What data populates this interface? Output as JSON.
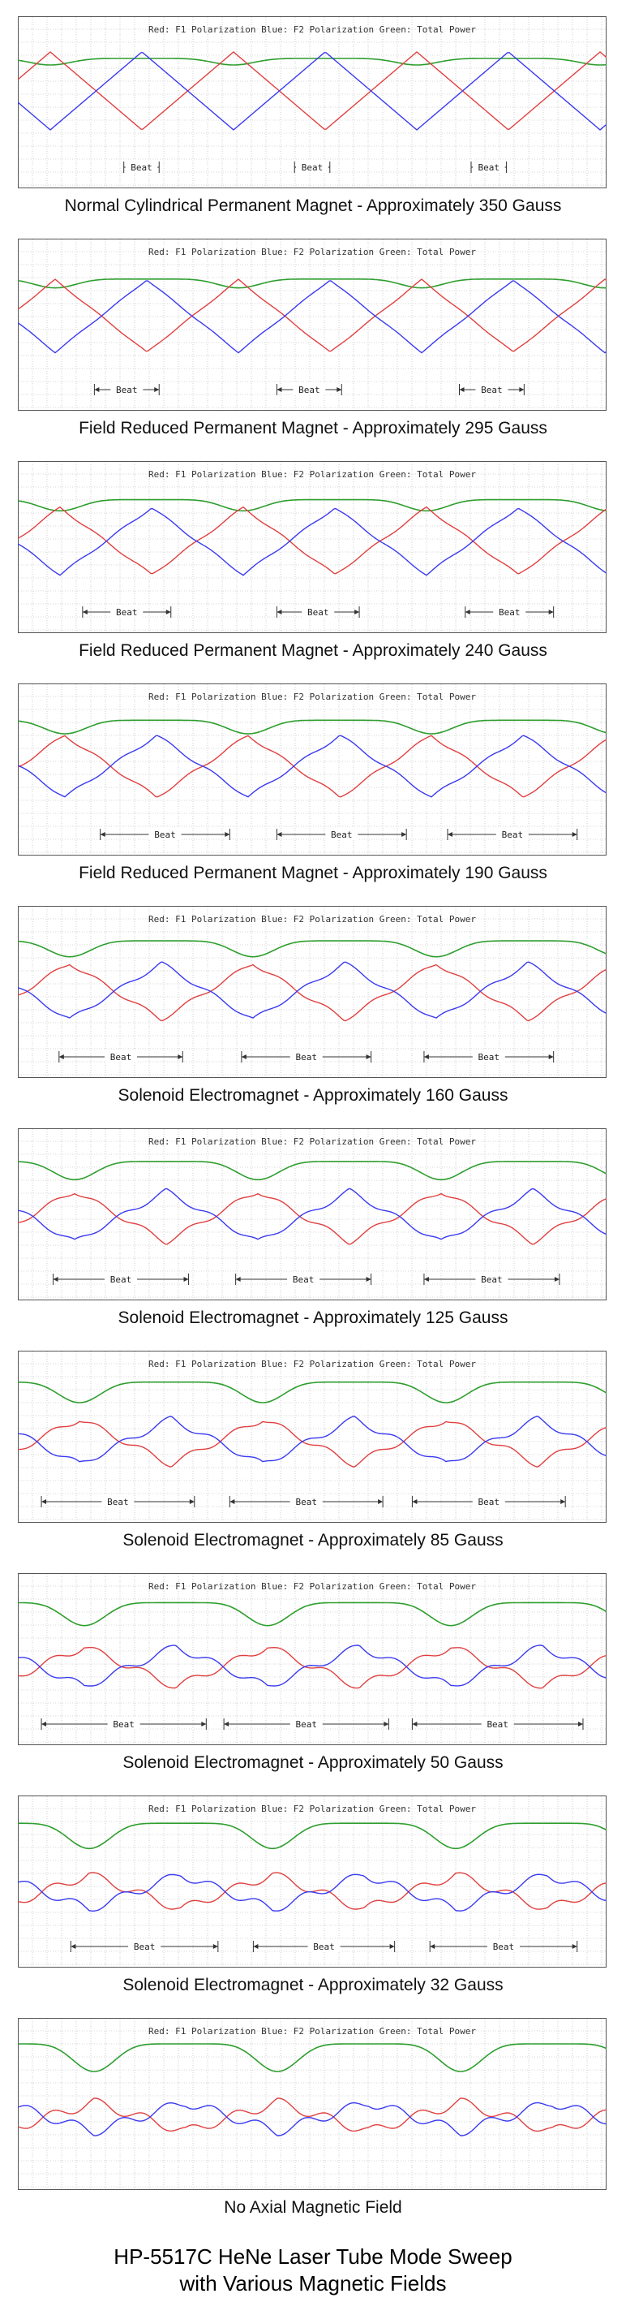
{
  "legend": "Red: F1 Polarization  Blue: F2 Polarization  Green: Total Power",
  "beat_label": "Beat",
  "colors": {
    "f1": "#e04040",
    "f2": "#3a3af0",
    "total": "#2e9e2e",
    "grid": "#b0b0b0",
    "frame": "#555555",
    "arrow": "#333333"
  },
  "title": {
    "line1": "HP-5517C HeNe Laser Tube Mode Sweep",
    "line2": "with Various Magnetic Fields"
  },
  "chart_data": [
    {
      "type": "line",
      "caption": "Normal Cylindrical Permanent Magnet - Approximately 350 Gauss",
      "beat": [
        [
          0.18,
          0.24
        ],
        [
          0.47,
          0.53
        ],
        [
          0.77,
          0.83
        ]
      ],
      "series": [
        {
          "name": "Red: F1 Polarization"
        },
        {
          "name": "Blue: F2 Polarization"
        },
        {
          "name": "Green: Total Power"
        }
      ]
    },
    {
      "type": "line",
      "caption": "Field Reduced Permanent Magnet - Approximately 295 Gauss",
      "beat": [
        [
          0.13,
          0.24
        ],
        [
          0.44,
          0.55
        ],
        [
          0.75,
          0.86
        ]
      ],
      "series": [
        {
          "name": "Red: F1 Polarization"
        },
        {
          "name": "Blue: F2 Polarization"
        },
        {
          "name": "Green: Total Power"
        }
      ]
    },
    {
      "type": "line",
      "caption": "Field Reduced Permanent Magnet - Approximately 240 Gauss",
      "beat": [
        [
          0.11,
          0.26
        ],
        [
          0.44,
          0.58
        ],
        [
          0.76,
          0.91
        ]
      ],
      "series": [
        {
          "name": "Red: F1 Polarization"
        },
        {
          "name": "Blue: F2 Polarization"
        },
        {
          "name": "Green: Total Power"
        }
      ]
    },
    {
      "type": "line",
      "caption": "Field Reduced Permanent Magnet - Approximately 190 Gauss",
      "beat": [
        [
          0.14,
          0.36
        ],
        [
          0.44,
          0.66
        ],
        [
          0.73,
          0.95
        ]
      ],
      "series": [
        {
          "name": "Red: F1 Polarization"
        },
        {
          "name": "Blue: F2 Polarization"
        },
        {
          "name": "Green: Total Power"
        }
      ]
    },
    {
      "type": "line",
      "caption": "Solenoid Electromagnet - Approximately 160 Gauss",
      "beat": [
        [
          0.07,
          0.28
        ],
        [
          0.38,
          0.6
        ],
        [
          0.69,
          0.91
        ]
      ],
      "series": [
        {
          "name": "Red: F1 Polarization"
        },
        {
          "name": "Blue: F2 Polarization"
        },
        {
          "name": "Green: Total Power"
        }
      ]
    },
    {
      "type": "line",
      "caption": "Solenoid Electromagnet - Approximately 125 Gauss",
      "beat": [
        [
          0.06,
          0.29
        ],
        [
          0.37,
          0.6
        ],
        [
          0.69,
          0.92
        ]
      ],
      "series": [
        {
          "name": "Red: F1 Polarization"
        },
        {
          "name": "Blue: F2 Polarization"
        },
        {
          "name": "Green: Total Power"
        }
      ]
    },
    {
      "type": "line",
      "caption": "Solenoid Electromagnet - Approximately 85 Gauss",
      "beat": [
        [
          0.04,
          0.3
        ],
        [
          0.36,
          0.62
        ],
        [
          0.67,
          0.93
        ]
      ],
      "series": [
        {
          "name": "Red: F1 Polarization"
        },
        {
          "name": "Blue: F2 Polarization"
        },
        {
          "name": "Green: Total Power"
        }
      ]
    },
    {
      "type": "line",
      "caption": "Solenoid Electromagnet - Approximately 50 Gauss",
      "beat": [
        [
          0.04,
          0.32
        ],
        [
          0.35,
          0.63
        ],
        [
          0.67,
          0.96
        ]
      ],
      "series": [
        {
          "name": "Red: F1 Polarization"
        },
        {
          "name": "Blue: F2 Polarization"
        },
        {
          "name": "Green: Total Power"
        }
      ]
    },
    {
      "type": "line",
      "caption": "Solenoid Electromagnet - Approximately 32 Gauss",
      "beat": [
        [
          0.09,
          0.34
        ],
        [
          0.4,
          0.64
        ],
        [
          0.7,
          0.95
        ]
      ],
      "series": [
        {
          "name": "Red: F1 Polarization"
        },
        {
          "name": "Blue: F2 Polarization"
        },
        {
          "name": "Green: Total Power"
        }
      ]
    },
    {
      "type": "line",
      "caption": "No Axial Magnetic Field",
      "beat": [],
      "series": [
        {
          "name": "Red: F1 Polarization"
        },
        {
          "name": "Blue: F2 Polarization"
        },
        {
          "name": "Green: Total Power"
        }
      ]
    }
  ]
}
